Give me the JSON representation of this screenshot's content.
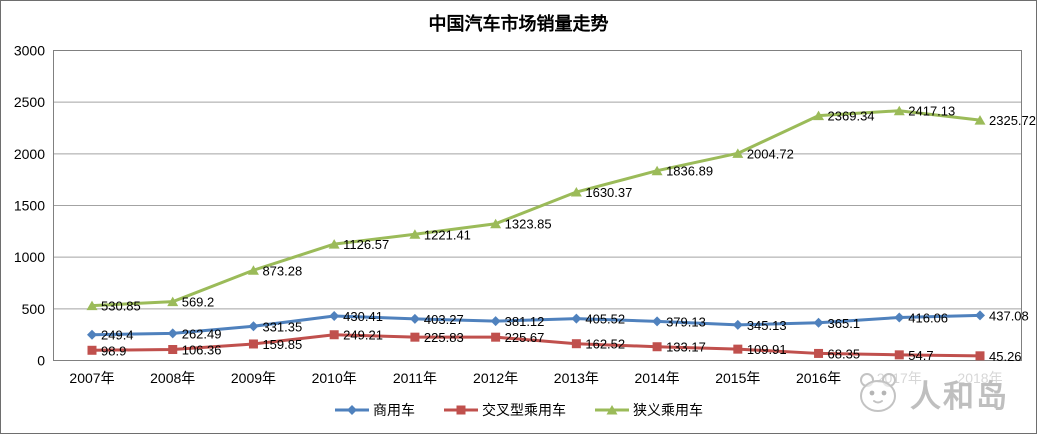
{
  "chart_data": {
    "type": "line",
    "title": "中国汽车市场销量走势",
    "categories": [
      "2007年",
      "2008年",
      "2009年",
      "2010年",
      "2011年",
      "2012年",
      "2013年",
      "2014年",
      "2015年",
      "2016年",
      "2017年",
      "2018年"
    ],
    "series": [
      {
        "name": "商用车",
        "marker": "diamond",
        "color": "#4F81BD",
        "values": [
          249.4,
          262.49,
          331.35,
          430.41,
          403.27,
          381.12,
          405.52,
          379.13,
          345.13,
          365.1,
          416.06,
          437.08
        ]
      },
      {
        "name": "交叉型乘用车",
        "marker": "square",
        "color": "#C0504D",
        "values": [
          98.9,
          106.36,
          159.85,
          249.21,
          225.83,
          225.67,
          162.52,
          133.17,
          109.91,
          68.35,
          54.7,
          45.26
        ]
      },
      {
        "name": "狭义乘用车",
        "marker": "triangle",
        "color": "#9BBB59",
        "values": [
          530.85,
          569.2,
          873.28,
          1126.57,
          1221.41,
          1323.85,
          1630.37,
          1836.89,
          2004.72,
          2369.34,
          2417.13,
          2325.72
        ]
      }
    ],
    "xlabel": "",
    "ylabel": "",
    "ylim": [
      0,
      3000
    ],
    "yticks": [
      0,
      500,
      1000,
      1500,
      2000,
      2500,
      3000
    ],
    "grid": true,
    "data_labels": true,
    "legend_position": "bottom"
  },
  "watermark": {
    "text": "人和岛"
  },
  "colors": {
    "grid": "#a3a3a3",
    "plot_border": "#808080",
    "text": "#000000",
    "watermark": "#c3c3c3",
    "background": "#ffffff"
  }
}
